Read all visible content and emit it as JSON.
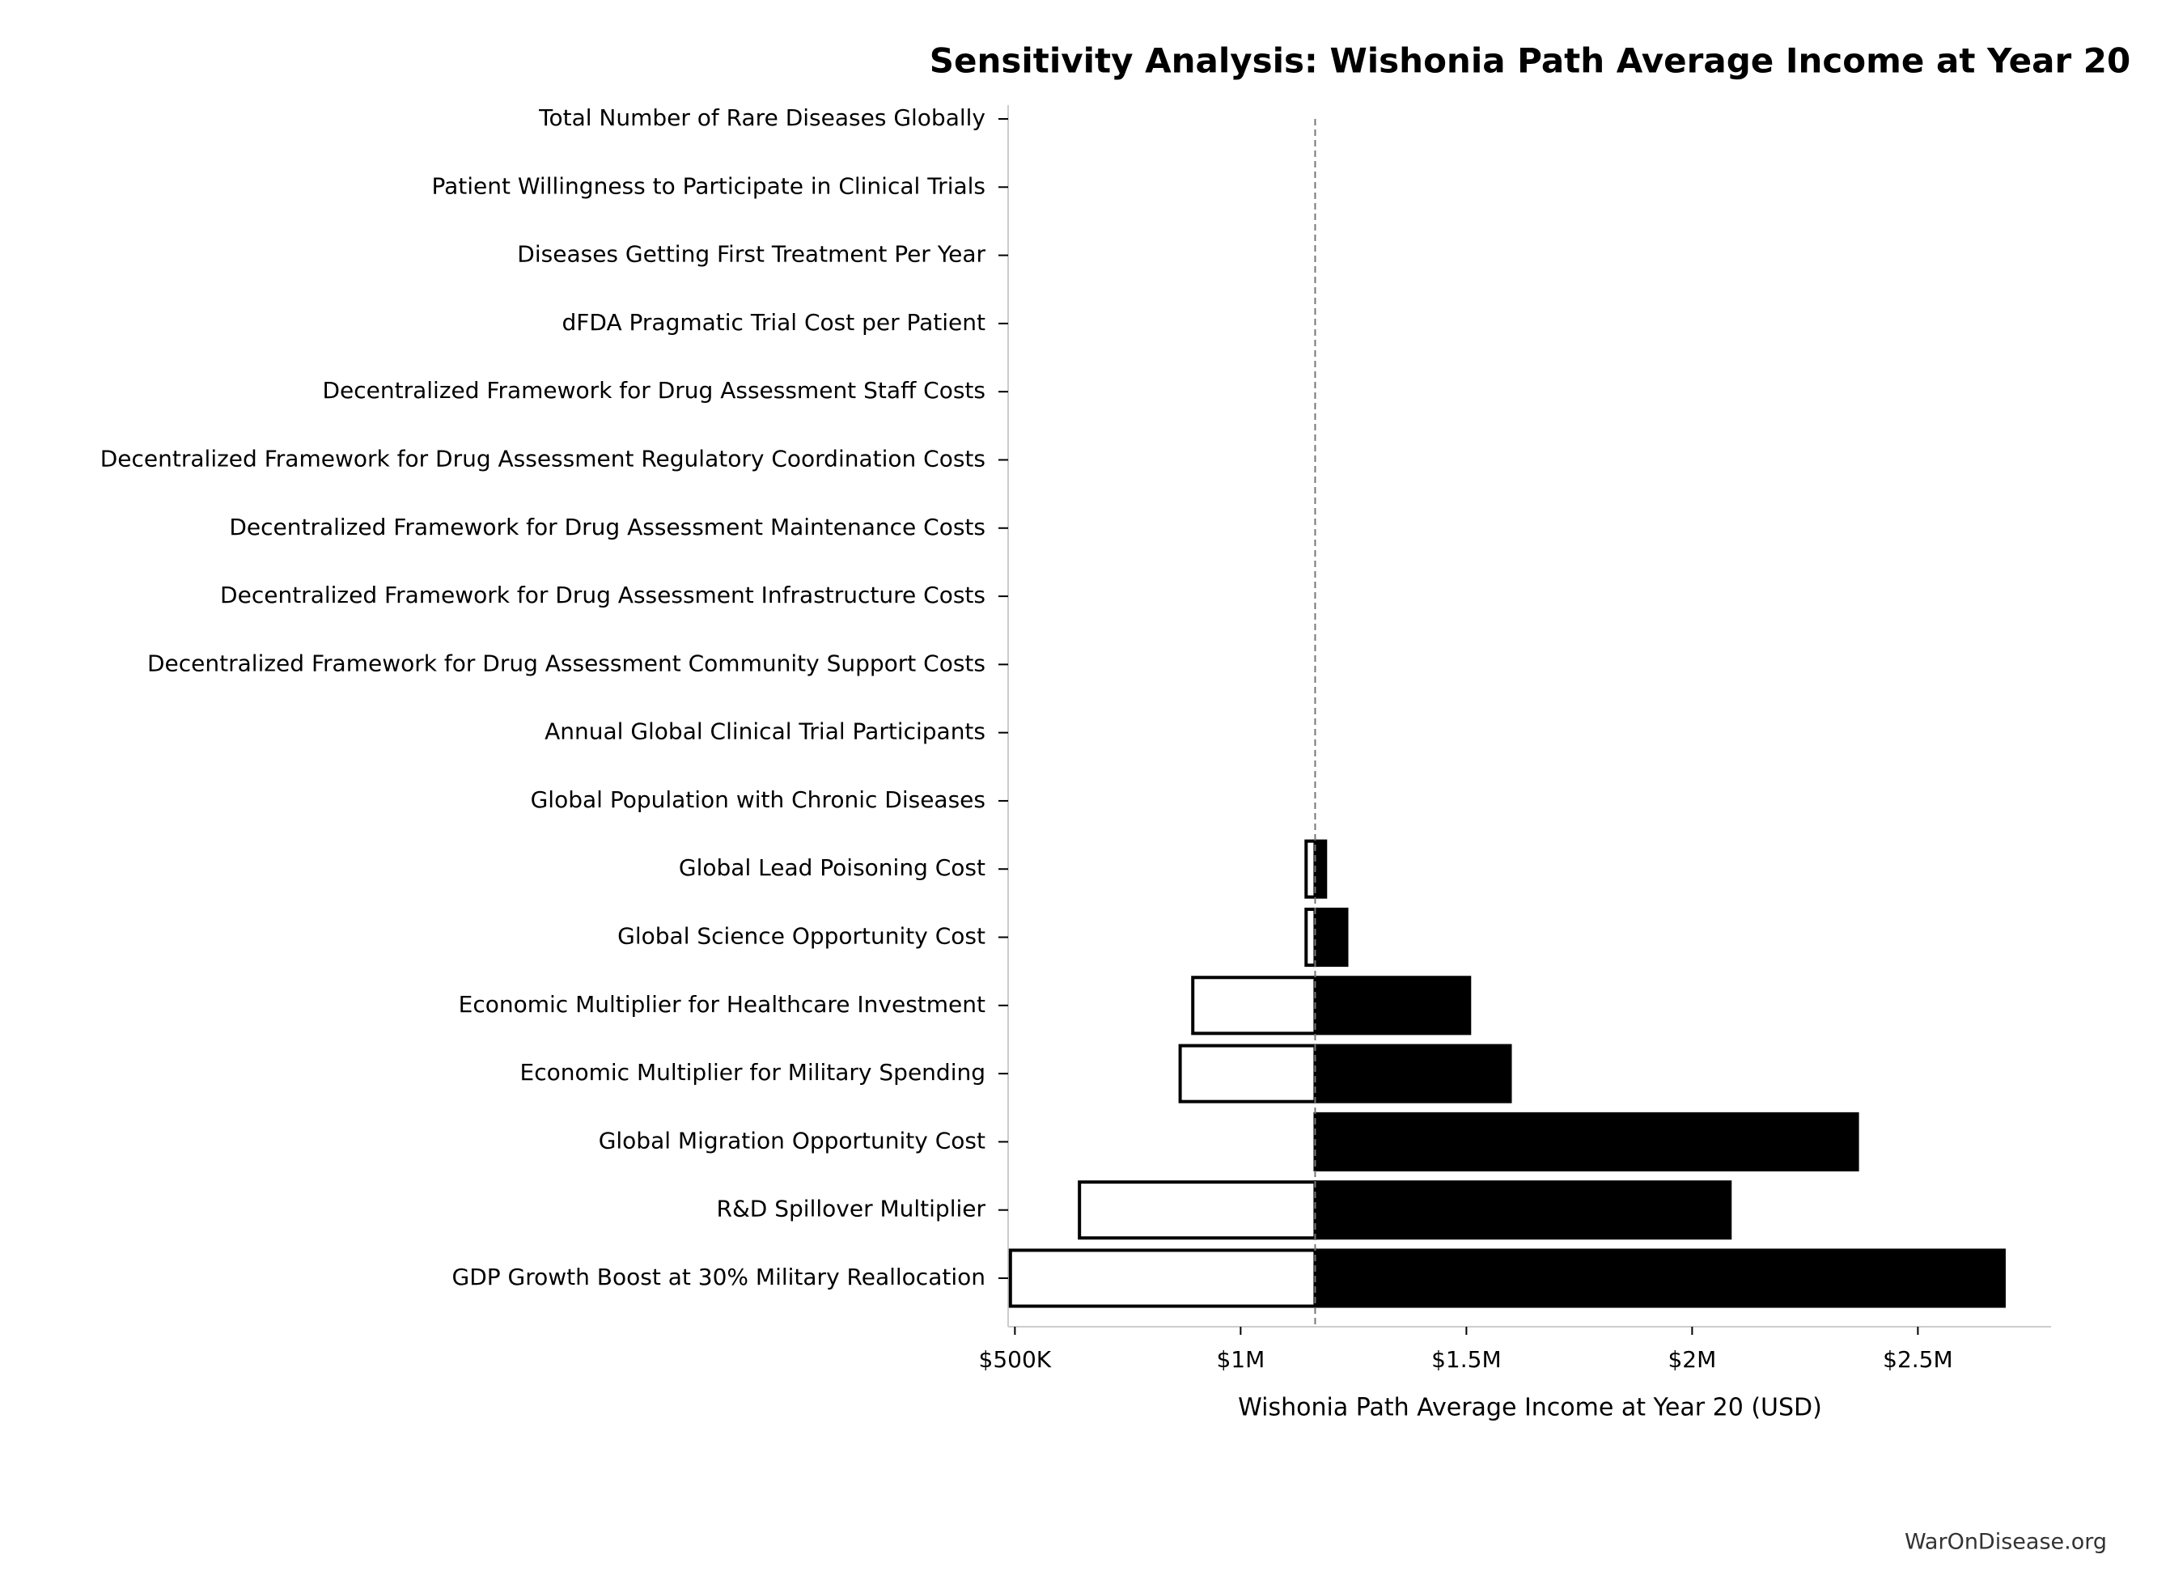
{
  "chart_data": {
    "type": "tornado",
    "title": "Sensitivity Analysis: Wishonia Path Average Income at Year 20",
    "x_label": "Wishonia Path Average Income at Year 20 (USD)",
    "source": "WarOnDisease.org",
    "categories": [
      "Total Number of Rare Diseases Globally",
      "Patient Willingness to Participate in Clinical Trials",
      "Diseases Getting First Treatment Per Year",
      "dFDA Pragmatic Trial Cost per Patient",
      "Decentralized Framework for Drug Assessment Staff Costs",
      "Decentralized Framework for Drug Assessment Regulatory Coordination Costs",
      "Decentralized Framework for Drug Assessment Maintenance Costs",
      "Decentralized Framework for Drug Assessment Infrastructure Costs",
      "Decentralized Framework for Drug Assessment Community Support Costs",
      "Annual Global Clinical Trial Participants",
      "Global Population with Chronic Diseases",
      "Global Lead Poisoning Cost",
      "Global Science Opportunity Cost",
      "Economic Multiplier for Healthcare Investment",
      "Economic Multiplier for Military Spending",
      "Global Migration Opportunity Cost",
      "R&D Spillover Multiplier",
      "GDP Growth Boost at 30% Military Reallocation"
    ],
    "baseline": 1165000,
    "low_values": [
      1165000,
      1165000,
      1165000,
      1165000,
      1165000,
      1165000,
      1165000,
      1165000,
      1165000,
      1165000,
      1165000,
      1145000,
      1145000,
      894000,
      866000,
      1165000,
      643000,
      490000
    ],
    "high_values": [
      1165000,
      1165000,
      1165000,
      1165000,
      1165000,
      1165000,
      1165000,
      1165000,
      1165000,
      1165000,
      1165000,
      1188000,
      1235000,
      1507000,
      1597000,
      2366000,
      2084000,
      2691000
    ],
    "low_color": "#ffffff",
    "high_color": "#000000",
    "xlim": [
      485000,
      2795000
    ],
    "xticks": [
      {
        "value": 500000,
        "label": "$500K"
      },
      {
        "value": 1000000,
        "label": "$1M"
      },
      {
        "value": 1500000,
        "label": "$1.5M"
      },
      {
        "value": 2000000,
        "label": "$2M"
      },
      {
        "value": 2500000,
        "label": "$2.5M"
      }
    ]
  }
}
